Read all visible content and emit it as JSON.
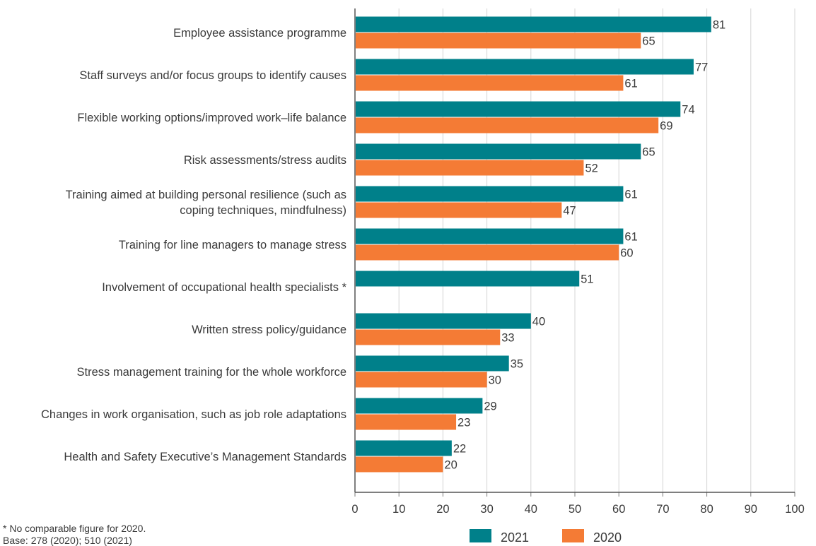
{
  "chart_data": {
    "type": "bar",
    "orientation": "horizontal",
    "categories": [
      [
        "Employee assistance programme"
      ],
      [
        "Staff surveys and/or focus groups to identify causes"
      ],
      [
        "Flexible working options/improved work–life balance"
      ],
      [
        "Risk assessments/stress audits"
      ],
      [
        "Training aimed at building personal resilience (such as",
        "coping techniques, mindfulness)"
      ],
      [
        "Training for line managers to manage stress"
      ],
      [
        "Involvement of occupational health specialists *"
      ],
      [
        "Written stress policy/guidance"
      ],
      [
        "Stress management training for the whole workforce"
      ],
      [
        "Changes in work organisation, such as job role adaptations"
      ],
      [
        "Health and Safety Executive’s Management Standards"
      ]
    ],
    "series": [
      {
        "name": "2021",
        "color": "#00808a",
        "values": [
          81,
          77,
          74,
          65,
          61,
          61,
          51,
          40,
          35,
          29,
          22
        ]
      },
      {
        "name": "2020",
        "color": "#f47b35",
        "values": [
          65,
          61,
          69,
          52,
          47,
          60,
          null,
          33,
          30,
          23,
          20
        ]
      }
    ],
    "xlim": [
      0,
      100
    ],
    "xticks": [
      0,
      10,
      20,
      30,
      40,
      50,
      60,
      70,
      80,
      90,
      100
    ],
    "grid": true,
    "legend_position": "bottom",
    "title": "",
    "xlabel": "",
    "ylabel": ""
  },
  "notes": [
    "* No comparable figure for 2020.",
    "Base: 278 (2020); 510 (2021)"
  ]
}
